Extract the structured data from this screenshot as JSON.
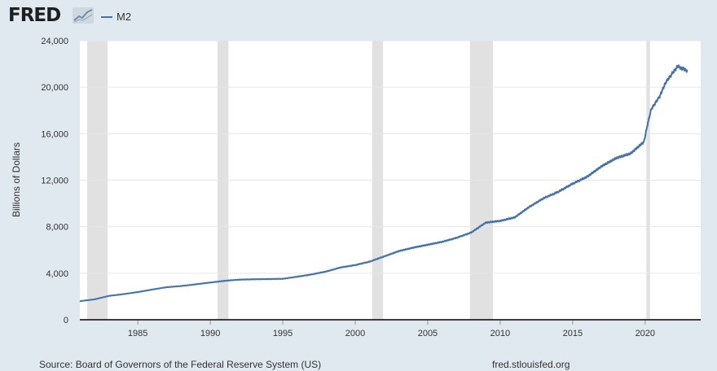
{
  "header": {
    "logo_text": "FRED",
    "logo_icon": "trend-line-chart-icon"
  },
  "footer": {
    "source": "Source: Board of Governors of the Federal Reserve System (US)",
    "site": "fred.stlouisfed.org"
  },
  "colors": {
    "series_line": "#4572a7",
    "page_background": "#e1e9f0",
    "plot_background": "#ffffff",
    "recession_band": "#e1e1e1",
    "grid": "#e6e6e6"
  },
  "chart_data": {
    "type": "line",
    "title": "",
    "xlabel": "",
    "ylabel": "Billions of Dollars",
    "xlim": [
      "1981-01",
      "2022-12"
    ],
    "ylim": [
      0,
      24000
    ],
    "grid": {
      "horizontal": true,
      "vertical": false
    },
    "legend": "top-left",
    "x_ticks": [
      "1985",
      "1990",
      "1995",
      "2000",
      "2005",
      "2010",
      "2015",
      "2020"
    ],
    "y_ticks": [
      "0",
      "4,000",
      "8,000",
      "12,000",
      "16,000",
      "20,000",
      "24,000"
    ],
    "recession_bands": [
      [
        "1981-07",
        "1982-11"
      ],
      [
        "1990-07",
        "1991-03"
      ],
      [
        "2001-03",
        "2001-11"
      ],
      [
        "2007-12",
        "2009-06"
      ],
      [
        "2020-02",
        "2020-04"
      ]
    ],
    "series": [
      {
        "name": "M2",
        "x": [
          "1981-01",
          "1982-01",
          "1983-01",
          "1984-01",
          "1985-01",
          "1986-01",
          "1987-01",
          "1988-01",
          "1989-01",
          "1990-01",
          "1991-01",
          "1992-01",
          "1993-01",
          "1994-01",
          "1995-01",
          "1996-01",
          "1997-01",
          "1998-01",
          "1999-01",
          "2000-01",
          "2001-01",
          "2002-01",
          "2003-01",
          "2004-01",
          "2005-01",
          "2006-01",
          "2007-01",
          "2008-01",
          "2009-01",
          "2010-01",
          "2011-01",
          "2012-01",
          "2013-01",
          "2014-01",
          "2015-01",
          "2016-01",
          "2017-01",
          "2018-01",
          "2019-01",
          "2019-12",
          "2020-03",
          "2020-06",
          "2021-01",
          "2021-06",
          "2022-01",
          "2022-04",
          "2022-12"
        ],
        "values": [
          1600,
          1750,
          2050,
          2200,
          2380,
          2600,
          2800,
          2900,
          3050,
          3200,
          3350,
          3450,
          3480,
          3500,
          3520,
          3700,
          3900,
          4150,
          4500,
          4700,
          5000,
          5450,
          5900,
          6200,
          6450,
          6700,
          7050,
          7500,
          8350,
          8500,
          8800,
          9700,
          10450,
          11000,
          11700,
          12300,
          13200,
          13900,
          14300,
          15300,
          16800,
          18100,
          19200,
          20400,
          21400,
          21800,
          21400
        ]
      }
    ]
  }
}
